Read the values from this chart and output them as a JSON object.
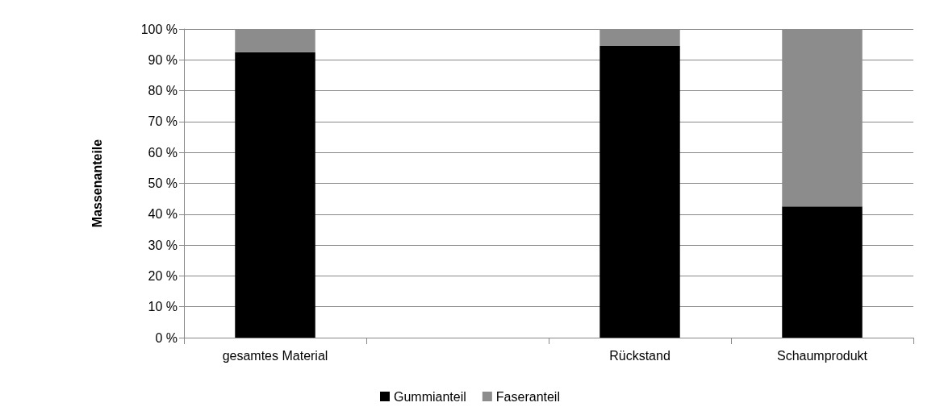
{
  "chart_data": {
    "type": "bar",
    "stacked": true,
    "ylabel": "Massenanteile",
    "categories": [
      "gesamtes Material",
      null,
      "Rückstand",
      "Schaumprodukt"
    ],
    "series": [
      {
        "name": "Gummianteil",
        "color": "#000000",
        "values": [
          92.5,
          null,
          94.5,
          42.5
        ]
      },
      {
        "name": "Faseranteil",
        "color": "#8c8c8c",
        "values": [
          7.5,
          null,
          5.5,
          57.5
        ]
      }
    ],
    "ylim": [
      0,
      100
    ],
    "yticks": [
      {
        "value": 0,
        "label": "0 %"
      },
      {
        "value": 10,
        "label": "10 %"
      },
      {
        "value": 20,
        "label": "20 %"
      },
      {
        "value": 30,
        "label": "30 %"
      },
      {
        "value": 40,
        "label": "40 %"
      },
      {
        "value": 50,
        "label": "50 %"
      },
      {
        "value": 60,
        "label": "60 %"
      },
      {
        "value": 70,
        "label": "70 %"
      },
      {
        "value": 80,
        "label": "80 %"
      },
      {
        "value": 90,
        "label": "90 %"
      },
      {
        "value": 100,
        "label": "100 %"
      }
    ],
    "grid": "y",
    "legend": "bottom"
  }
}
